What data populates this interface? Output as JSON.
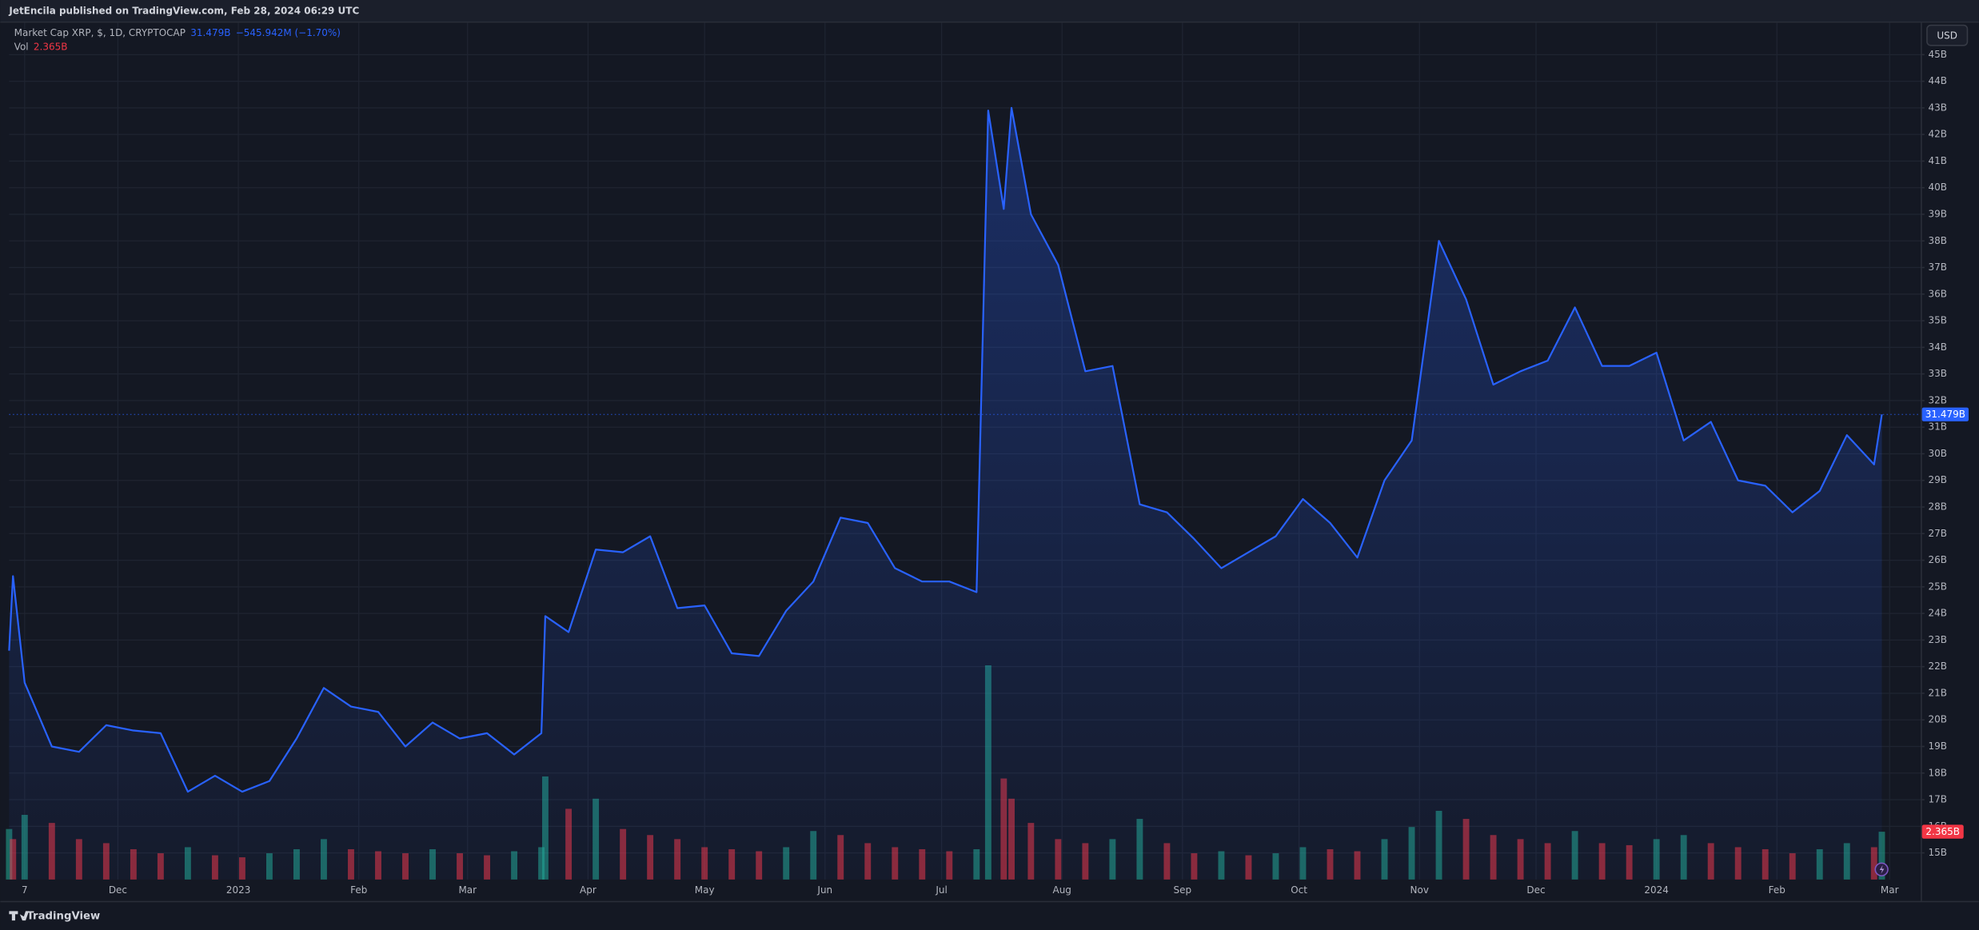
{
  "header": {
    "published": "JetEncila published on TradingView.com, Feb 28, 2024 06:29 UTC"
  },
  "ui": {
    "currency": "USD"
  },
  "footer": {
    "brand": "TradingView"
  },
  "chart_data": {
    "type": "line",
    "change_label": "−545.942M (−1.70%)",
    "x": [
      "2022-11-03",
      "2022-11-04",
      "2022-11-07",
      "2022-11-14",
      "2022-11-21",
      "2022-11-28",
      "2022-12-05",
      "2022-12-12",
      "2022-12-19",
      "2022-12-26",
      "2023-01-02",
      "2023-01-09",
      "2023-01-16",
      "2023-01-23",
      "2023-01-30",
      "2023-02-06",
      "2023-02-13",
      "2023-02-20",
      "2023-02-27",
      "2023-03-06",
      "2023-03-13",
      "2023-03-20",
      "2023-03-21",
      "2023-03-27",
      "2023-04-03",
      "2023-04-10",
      "2023-04-17",
      "2023-04-24",
      "2023-05-01",
      "2023-05-08",
      "2023-05-15",
      "2023-05-22",
      "2023-05-29",
      "2023-06-05",
      "2023-06-12",
      "2023-06-19",
      "2023-06-26",
      "2023-07-03",
      "2023-07-10",
      "2023-07-13",
      "2023-07-17",
      "2023-07-19",
      "2023-07-24",
      "2023-07-31",
      "2023-08-07",
      "2023-08-14",
      "2023-08-21",
      "2023-08-28",
      "2023-09-04",
      "2023-09-11",
      "2023-09-18",
      "2023-09-25",
      "2023-10-02",
      "2023-10-09",
      "2023-10-16",
      "2023-10-23",
      "2023-10-30",
      "2023-11-06",
      "2023-11-13",
      "2023-11-20",
      "2023-11-27",
      "2023-12-04",
      "2023-12-11",
      "2023-12-18",
      "2023-12-25",
      "2024-01-01",
      "2024-01-08",
      "2024-01-15",
      "2024-01-22",
      "2024-01-29",
      "2024-02-05",
      "2024-02-12",
      "2024-02-19",
      "2024-02-26",
      "2024-02-28"
    ],
    "series": [
      {
        "name": "Market Cap XRP, $, 1D, CRYPTOCAP",
        "color": "#2962ff",
        "values": [
          22.6,
          25.4,
          21.4,
          19.0,
          18.8,
          19.8,
          19.6,
          19.5,
          17.3,
          17.9,
          17.3,
          17.7,
          19.3,
          21.2,
          20.5,
          20.3,
          19.0,
          19.9,
          19.3,
          19.5,
          18.7,
          19.5,
          23.9,
          23.3,
          26.4,
          26.3,
          26.9,
          24.2,
          24.3,
          22.5,
          22.4,
          24.1,
          25.2,
          27.6,
          27.4,
          25.7,
          25.2,
          25.2,
          24.8,
          42.9,
          39.2,
          43.0,
          39.0,
          37.1,
          33.1,
          33.3,
          28.1,
          27.8,
          26.8,
          25.7,
          26.3,
          26.9,
          28.3,
          27.4,
          26.1,
          29.0,
          30.5,
          38.0,
          35.8,
          32.6,
          33.1,
          33.5,
          35.5,
          33.3,
          33.3,
          33.8,
          30.5,
          31.2,
          29.0,
          28.8,
          27.8,
          28.6,
          30.7,
          29.6,
          31.479
        ],
        "value_labels": [
          null,
          null,
          null,
          null,
          null,
          null,
          null,
          null,
          null,
          null,
          null,
          null,
          null,
          null,
          null,
          null,
          null,
          null,
          null,
          null,
          null,
          null,
          null,
          null,
          null,
          null,
          null,
          null,
          null,
          null,
          null,
          null,
          null,
          null,
          null,
          null,
          null,
          null,
          null,
          null,
          null,
          null,
          null,
          null,
          null,
          null,
          null,
          null,
          null,
          null,
          null,
          null,
          null,
          null,
          null,
          null,
          null,
          null,
          null,
          null,
          null,
          null,
          null,
          null,
          null,
          null,
          null,
          null,
          null,
          null,
          null,
          null,
          null,
          null,
          "31.479B"
        ]
      },
      {
        "name": "Vol",
        "axis": "y2",
        "color": "#f23645",
        "up_color": "#22ab94",
        "down_color": "#f23645",
        "values": [
          2.5,
          2.0,
          3.2,
          2.8,
          2.0,
          1.8,
          1.5,
          1.3,
          1.6,
          1.2,
          1.1,
          1.3,
          1.5,
          2.0,
          1.5,
          1.4,
          1.3,
          1.5,
          1.3,
          1.2,
          1.4,
          1.6,
          5.1,
          3.5,
          4.0,
          2.5,
          2.2,
          2.0,
          1.6,
          1.5,
          1.4,
          1.6,
          2.4,
          2.2,
          1.8,
          1.6,
          1.5,
          1.4,
          1.5,
          10.6,
          5.0,
          4.0,
          2.8,
          2.0,
          1.8,
          2.0,
          3.0,
          1.8,
          1.3,
          1.4,
          1.2,
          1.3,
          1.6,
          1.5,
          1.4,
          2.0,
          2.6,
          3.4,
          3.0,
          2.2,
          2.0,
          1.8,
          2.4,
          1.8,
          1.7,
          2.0,
          2.2,
          1.8,
          1.6,
          1.5,
          1.3,
          1.5,
          1.8,
          1.6,
          2.365
        ],
        "value_labels": [
          null,
          null,
          null,
          null,
          null,
          null,
          null,
          null,
          null,
          null,
          null,
          null,
          null,
          null,
          null,
          null,
          null,
          null,
          null,
          null,
          null,
          null,
          null,
          null,
          null,
          null,
          null,
          null,
          null,
          null,
          null,
          null,
          null,
          null,
          null,
          null,
          null,
          null,
          null,
          null,
          null,
          null,
          null,
          null,
          null,
          null,
          null,
          null,
          null,
          null,
          null,
          null,
          null,
          null,
          null,
          null,
          null,
          null,
          null,
          null,
          null,
          null,
          null,
          null,
          null,
          null,
          null,
          null,
          null,
          null,
          null,
          null,
          null,
          null,
          "2.365B"
        ]
      }
    ],
    "xlim": [
      "2022-11-03",
      "2024-03-09"
    ],
    "xticks": [
      {
        "value": "2022-11-07",
        "label": "7"
      },
      {
        "value": "2022-12-01",
        "label": "Dec"
      },
      {
        "value": "2023-01-01",
        "label": "2023"
      },
      {
        "value": "2023-02-01",
        "label": "Feb"
      },
      {
        "value": "2023-03-01",
        "label": "Mar"
      },
      {
        "value": "2023-04-01",
        "label": "Apr"
      },
      {
        "value": "2023-05-01",
        "label": "May"
      },
      {
        "value": "2023-06-01",
        "label": "Jun"
      },
      {
        "value": "2023-07-01",
        "label": "Jul"
      },
      {
        "value": "2023-08-01",
        "label": "Aug"
      },
      {
        "value": "2023-09-01",
        "label": "Sep"
      },
      {
        "value": "2023-10-01",
        "label": "Oct"
      },
      {
        "value": "2023-11-01",
        "label": "Nov"
      },
      {
        "value": "2023-12-01",
        "label": "Dec"
      },
      {
        "value": "2024-01-01",
        "label": "2024"
      },
      {
        "value": "2024-02-01",
        "label": "Feb"
      },
      {
        "value": "2024-03-01",
        "label": "Mar"
      }
    ],
    "ylim": [
      14,
      46.2
    ],
    "yticks": [
      {
        "value": 15,
        "label": "15B"
      },
      {
        "value": 16,
        "label": "16B"
      },
      {
        "value": 17,
        "label": "17B"
      },
      {
        "value": 18,
        "label": "18B"
      },
      {
        "value": 19,
        "label": "19B"
      },
      {
        "value": 20,
        "label": "20B"
      },
      {
        "value": 21,
        "label": "21B"
      },
      {
        "value": 22,
        "label": "22B"
      },
      {
        "value": 23,
        "label": "23B"
      },
      {
        "value": 24,
        "label": "24B"
      },
      {
        "value": 25,
        "label": "25B"
      },
      {
        "value": 26,
        "label": "26B"
      },
      {
        "value": 27,
        "label": "27B"
      },
      {
        "value": 28,
        "label": "28B"
      },
      {
        "value": 29,
        "label": "29B"
      },
      {
        "value": 30,
        "label": "30B"
      },
      {
        "value": 31,
        "label": "31B"
      },
      {
        "value": 32,
        "label": "32B"
      },
      {
        "value": 33,
        "label": "33B"
      },
      {
        "value": 34,
        "label": "34B"
      },
      {
        "value": 35,
        "label": "35B"
      },
      {
        "value": 36,
        "label": "36B"
      },
      {
        "value": 37,
        "label": "37B"
      },
      {
        "value": 38,
        "label": "38B"
      },
      {
        "value": 39,
        "label": "39B"
      },
      {
        "value": 40,
        "label": "40B"
      },
      {
        "value": 41,
        "label": "41B"
      },
      {
        "value": 42,
        "label": "42B"
      },
      {
        "value": 43,
        "label": "43B"
      },
      {
        "value": 44,
        "label": "44B"
      },
      {
        "value": 45,
        "label": "45B"
      }
    ],
    "y2lim": [
      0,
      42.4
    ],
    "grid": true
  }
}
